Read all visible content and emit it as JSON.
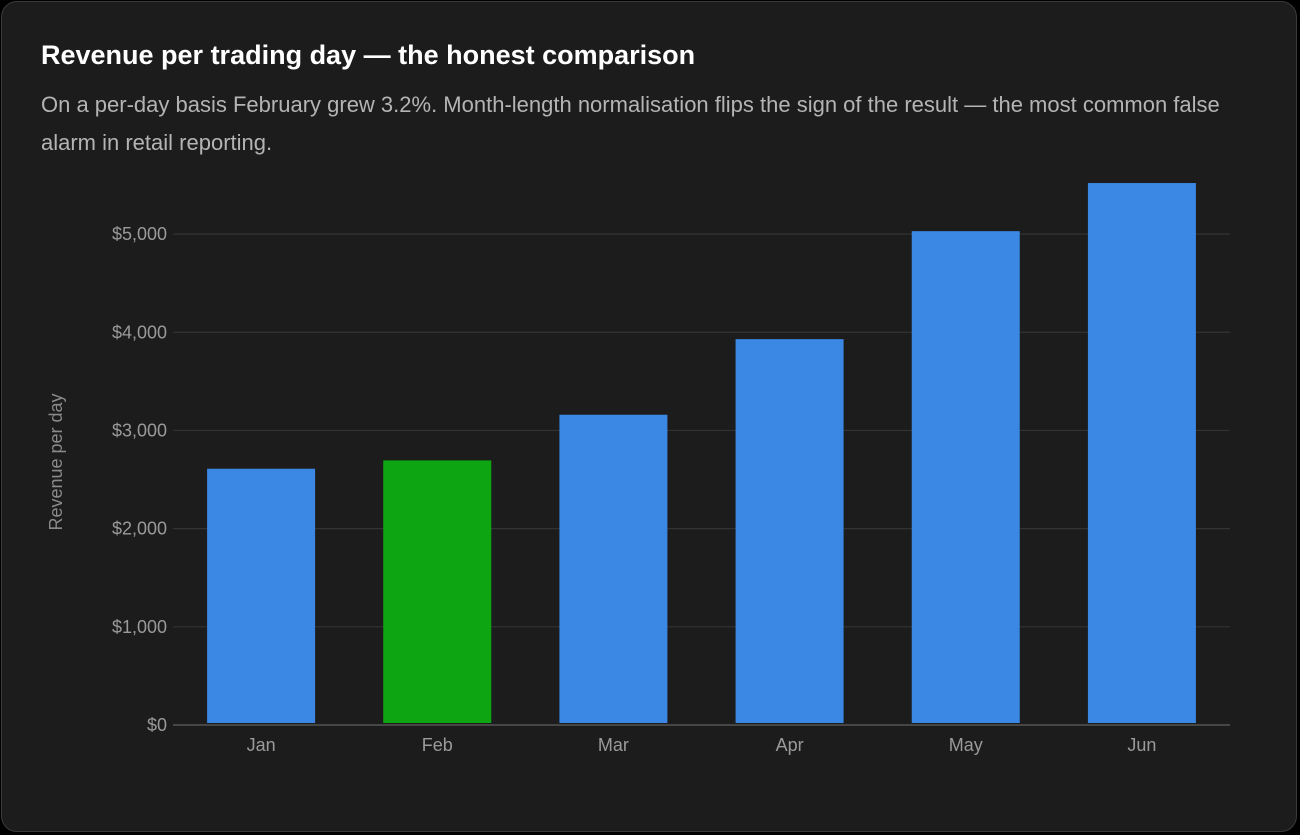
{
  "title": "Revenue per trading day — the honest comparison",
  "subtitle": "On a per-day basis February grew 3.2%. Month-length normalisation flips the sign of the result — the most common false alarm in retail reporting.",
  "chart_data": {
    "type": "bar",
    "ylabel": "Revenue per day",
    "xlabel": "",
    "categories": [
      "Jan",
      "Feb",
      "Mar",
      "Apr",
      "May",
      "Jun"
    ],
    "values": [
      2610,
      2695,
      3160,
      3930,
      5030,
      5520
    ],
    "highlight": {
      "category": "Feb",
      "color": "#0ea512"
    },
    "bar_color": "#3a87e4",
    "ylim": [
      0,
      5500
    ],
    "yticks": [
      0,
      1000,
      2000,
      3000,
      4000,
      5000
    ],
    "ytick_labels": [
      "$0",
      "$1,000",
      "$2,000",
      "$3,000",
      "$4,000",
      "$5,000"
    ],
    "grid": true,
    "legend": "none"
  }
}
